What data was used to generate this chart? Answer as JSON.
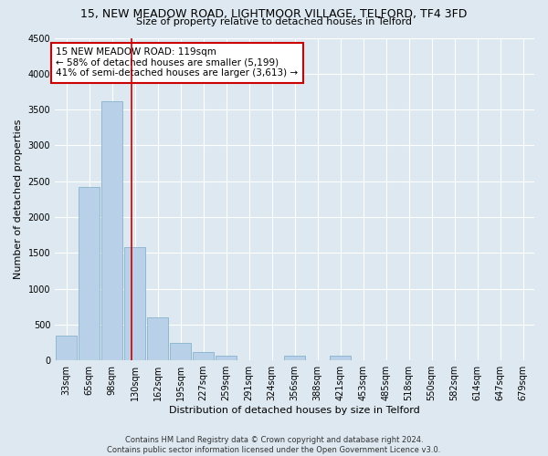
{
  "title1": "15, NEW MEADOW ROAD, LIGHTMOOR VILLAGE, TELFORD, TF4 3FD",
  "title2": "Size of property relative to detached houses in Telford",
  "xlabel": "Distribution of detached houses by size in Telford",
  "ylabel": "Number of detached properties",
  "footer1": "Contains HM Land Registry data © Crown copyright and database right 2024.",
  "footer2": "Contains public sector information licensed under the Open Government Licence v3.0.",
  "annotation_line1": "15 NEW MEADOW ROAD: 119sqm",
  "annotation_line2": "← 58% of detached houses are smaller (5,199)",
  "annotation_line3": "41% of semi-detached houses are larger (3,613) →",
  "bar_labels": [
    "33sqm",
    "65sqm",
    "98sqm",
    "130sqm",
    "162sqm",
    "195sqm",
    "227sqm",
    "259sqm",
    "291sqm",
    "324sqm",
    "356sqm",
    "388sqm",
    "421sqm",
    "453sqm",
    "485sqm",
    "518sqm",
    "550sqm",
    "582sqm",
    "614sqm",
    "647sqm",
    "679sqm"
  ],
  "bar_values": [
    350,
    2420,
    3620,
    1580,
    600,
    240,
    110,
    60,
    0,
    0,
    60,
    0,
    60,
    0,
    0,
    0,
    0,
    0,
    0,
    0,
    0
  ],
  "bar_color": "#b8d0e8",
  "bar_edge_color": "#7aaac8",
  "marker_color": "#cc0000",
  "ylim": [
    0,
    4500
  ],
  "yticks": [
    0,
    500,
    1000,
    1500,
    2000,
    2500,
    3000,
    3500,
    4000,
    4500
  ],
  "bg_color": "#dde8f0",
  "plot_bg_color": "#dde8f0",
  "annotation_box_color": "#ffffff",
  "annotation_box_edge": "#cc0000",
  "title1_fontsize": 9,
  "title2_fontsize": 8,
  "axis_label_fontsize": 8,
  "tick_fontsize": 7,
  "annotation_fontsize": 7.5,
  "footer_fontsize": 6
}
